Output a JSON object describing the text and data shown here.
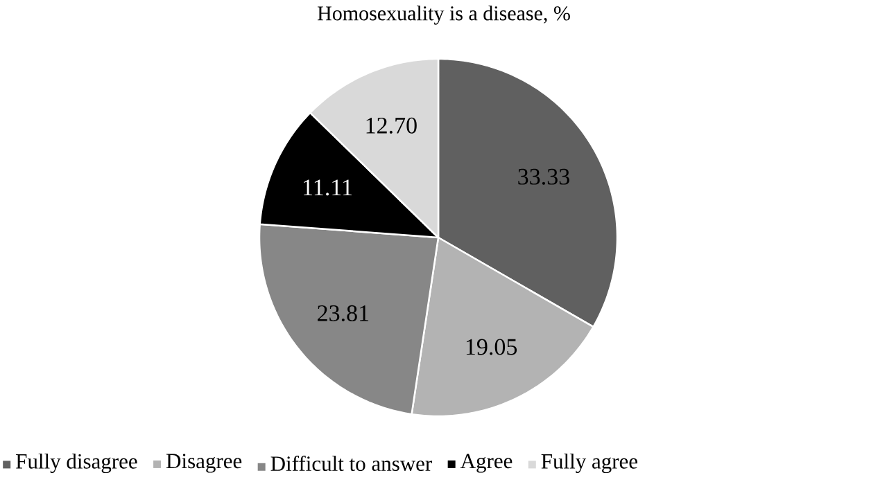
{
  "chart_data": {
    "type": "pie",
    "title": "Homosexuality is a disease, %",
    "categories": [
      "Fully disagree",
      "Disagree",
      "Difficult to answer",
      "Agree",
      "Fully agree"
    ],
    "values": [
      33.33,
      19.05,
      23.81,
      11.11,
      12.7
    ],
    "value_labels": [
      "33.33",
      "19.05",
      "23.81",
      "11.11",
      "12.70"
    ],
    "colors": [
      "#606060",
      "#b3b3b3",
      "#878787",
      "#000000",
      "#d9d9d9"
    ],
    "legend": "bottom"
  }
}
